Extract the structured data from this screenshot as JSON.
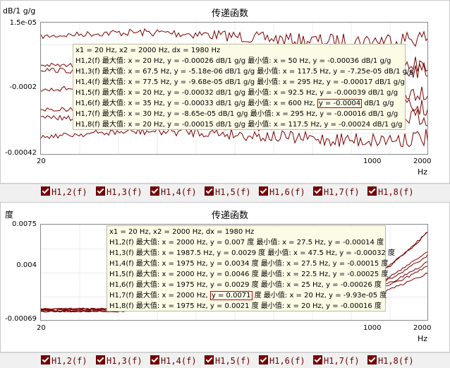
{
  "top": {
    "title": "传递函数",
    "yunit": "dB/1 g/g",
    "xunit": "Hz",
    "yticks": [
      "1.5e-05",
      "-0.0002",
      "-0.00042"
    ],
    "xticks": [
      "20",
      "1000",
      "2000"
    ],
    "tooltip": [
      "x1 = 20 Hz, x2 = 2000 Hz, dx = 1980 Hz",
      "H1,2(f) 最大值: x = 20 Hz, y = -0.00026 dB/1 g/g 最小值: x = 50 Hz, y = -0.00036 dB/1 g/g",
      "H1,3(f) 最大值: x = 67.5 Hz, y = -5.18e-06 dB/1 g/g 最小值: x = 117.5 Hz, y = -7.25e-05 dB/1 g/g",
      "H1,4(f) 最大值: x = 77.5 Hz, y = -9.68e-05 dB/1 g/g 最小值: x = 295 Hz, y = -0.00017 dB/1 g/g",
      "H1,5(f) 最大值: x = 20 Hz, y = -0.00032 dB/1 g/g 最小值: x = 92.5 Hz, y = -0.00039 dB/1 g/g",
      "H1,6(f) 最大值: x = 35 Hz, y = -0.00033 dB/1 g/g 最小值: x = 600 Hz, ",
      "H1,7(f) 最大值: x = 30 Hz, y = -8.65e-05 dB/1 g/g 最小值: x = 295 Hz, y = -0.00016 dB/1 g/g",
      "H1,8(f) 最大值: x = 20 Hz, y = -0.00015 dB/1 g/g 最小值: x = 117.5 Hz, y = -0.00024 dB/1 g/g"
    ],
    "tooltip_hl": "y = -0.0004",
    "tooltip_hl_tail": " dB/1 g/g"
  },
  "bottom": {
    "title": "传递函数",
    "yunit": "度",
    "xunit": "Hz",
    "yticks": [
      "0.0075",
      "0.004",
      "-0.00069"
    ],
    "xticks": [
      "20",
      "1000",
      "2000"
    ],
    "tooltip": [
      "x1 = 20 Hz, x2 = 2000 Hz, dx = 1980 Hz",
      "H1,2(f) 最大值: x = 2000 Hz, y = 0.007 度 最小值: x = 27.5 Hz, y = -0.00014 度",
      "H1,3(f) 最大值: x = 1987.5 Hz, y = 0.0029 度 最小值: x = 47.5 Hz, y = -0.00032 度",
      "H1,4(f) 最大值: x = 1975 Hz, y = 0.0034 度 最小值: x = 27.5 Hz, y = -0.00015 度",
      "H1,5(f) 最大值: x = 2000 Hz, y = 0.0046 度 最小值: x = 22.5 Hz, y = -0.00025 度",
      "H1,6(f) 最大值: x = 1975 Hz, y = 0.0029 度 最小值: x = 25 Hz, y = -0.00026 度",
      "H1,7(f) 最大值: x = 2000 Hz, ",
      "H1,8(f) 最大值: x = 1975 Hz, y = 0.0021 度 最小值: x = 20 Hz, y = -0.00016 度"
    ],
    "tooltip_hl": "y = 0.0071",
    "tooltip_hl_tail": " 度 最小值: x = 20 Hz, y = -9.93e-05 度"
  },
  "legend": [
    "H1,2(f)",
    "H1,3(f)",
    "H1,4(f)",
    "H1,5(f)",
    "H1,6(f)",
    "H1,7(f)",
    "H1,8(f)"
  ],
  "colors": {
    "line": "#7a0000",
    "grid": "#d8d8d8"
  }
}
